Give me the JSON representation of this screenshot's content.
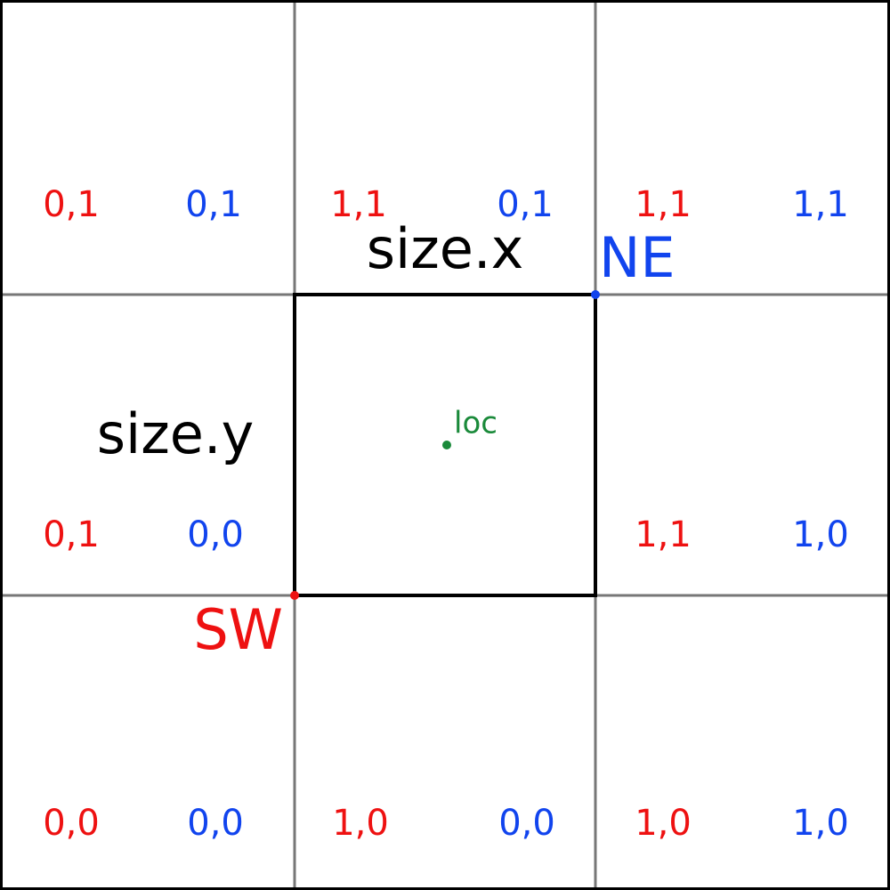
{
  "cells": [
    {
      "red": "0,1",
      "blue": "0,1"
    },
    {
      "red": "1,1",
      "blue": "0,1"
    },
    {
      "red": "1,1",
      "blue": "1,1"
    },
    {
      "red": "0,1",
      "blue": "0,0"
    },
    {
      "red": "1,1",
      "blue": "1,0"
    },
    {
      "red": "0,0",
      "blue": "0,0"
    },
    {
      "red": "1,0",
      "blue": "0,0"
    },
    {
      "red": "1,0",
      "blue": "1,0"
    }
  ],
  "labels": {
    "size_x": "size.x",
    "size_y": "size.y",
    "ne": "NE",
    "sw": "SW",
    "loc": "loc"
  }
}
